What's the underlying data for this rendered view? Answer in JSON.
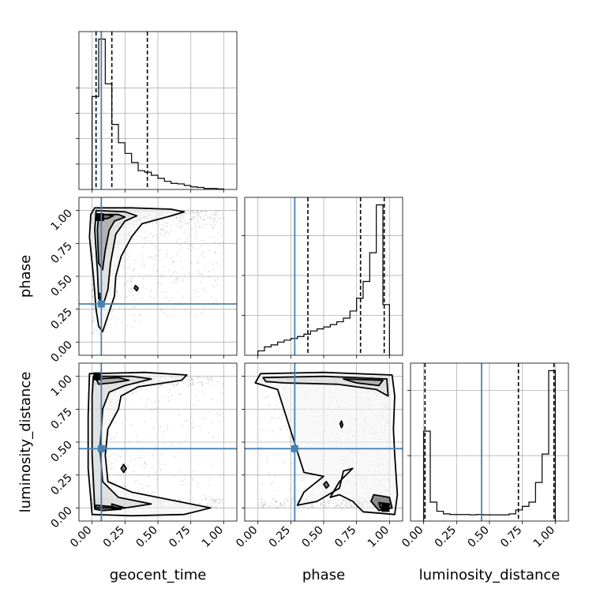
{
  "chart_data": [
    {
      "type": "histogram",
      "panel": "geocent_time",
      "xlim": [
        -0.1,
        1.1
      ],
      "bins": [
        0.0,
        0.05,
        0.1,
        0.15,
        0.2,
        0.25,
        0.3,
        0.35,
        0.4,
        0.45,
        0.5,
        0.55,
        0.6,
        0.65,
        0.7,
        0.75,
        0.8,
        0.85,
        0.9,
        0.95,
        1.0
      ],
      "counts": [
        183,
        296,
        208,
        128,
        92,
        71,
        53,
        37,
        34,
        28,
        22,
        16,
        12,
        11,
        8,
        5,
        4,
        2,
        2,
        1
      ],
      "yticks": [
        50,
        100,
        150,
        200
      ],
      "quantile_lines": [
        0.03,
        0.15,
        0.42
      ],
      "truth": 0.07
    },
    {
      "type": "histogram",
      "panel": "phase",
      "xlim": [
        -0.1,
        1.1
      ],
      "bins": [
        0.0,
        0.05,
        0.1,
        0.15,
        0.2,
        0.25,
        0.3,
        0.35,
        0.4,
        0.45,
        0.5,
        0.55,
        0.6,
        0.65,
        0.7,
        0.75,
        0.8,
        0.85,
        0.9,
        0.95,
        1.0
      ],
      "counts": [
        11,
        21,
        26,
        33,
        38,
        42,
        47,
        53,
        61,
        66,
        71,
        77,
        84,
        93,
        111,
        143,
        185,
        257,
        377,
        127
      ],
      "yticks": [
        100,
        200,
        300
      ],
      "quantile_lines": [
        0.38,
        0.78,
        0.96
      ],
      "truth": 0.28
    },
    {
      "type": "histogram",
      "panel": "luminosity_distance",
      "xlim": [
        -0.1,
        1.1
      ],
      "bins": [
        0.0,
        0.05,
        0.1,
        0.15,
        0.2,
        0.25,
        0.3,
        0.35,
        0.4,
        0.45,
        0.5,
        0.55,
        0.6,
        0.65,
        0.7,
        0.75,
        0.8,
        0.85,
        0.9,
        0.95,
        1.0
      ],
      "counts": [
        275,
        58,
        30,
        22,
        20,
        20,
        20,
        19,
        20,
        19,
        19,
        19,
        19,
        22,
        34,
        45,
        58,
        118,
        205,
        460
      ],
      "yticks": [
        200,
        400
      ],
      "quantile_lines": [
        0.01,
        0.72,
        0.99
      ],
      "truth": 0.44
    },
    {
      "type": "contour",
      "panel": "phase vs geocent_time",
      "xlim": [
        -0.1,
        1.1
      ],
      "ylim": [
        -0.1,
        1.1
      ],
      "xticks": [
        0.0,
        0.25,
        0.5,
        0.75,
        1.0
      ],
      "yticks": [
        0.0,
        0.25,
        0.5,
        0.75,
        1.0
      ],
      "yticklabels": [
        "0.00",
        "0.25",
        "0.50",
        "0.75",
        "1.00"
      ],
      "ylabel": "phase",
      "truth": [
        0.07,
        0.29
      ],
      "contours": [
        [
          [
            0.02,
            1.02
          ],
          [
            0.3,
            1.02
          ],
          [
            0.6,
            1.01
          ],
          [
            0.7,
            0.99
          ],
          [
            0.6,
            0.96
          ],
          [
            0.38,
            0.9
          ],
          [
            0.3,
            0.8
          ],
          [
            0.22,
            0.65
          ],
          [
            0.18,
            0.5
          ],
          [
            0.17,
            0.35
          ],
          [
            0.12,
            0.2
          ],
          [
            0.08,
            0.08
          ],
          [
            0.05,
            0.12
          ],
          [
            0.03,
            0.25
          ],
          [
            0.01,
            0.5
          ],
          [
            -0.02,
            0.8
          ],
          [
            -0.01,
            0.97
          ]
        ],
        [
          [
            0.03,
            1.0
          ],
          [
            0.25,
            0.99
          ],
          [
            0.34,
            0.96
          ],
          [
            0.25,
            0.92
          ],
          [
            0.18,
            0.82
          ],
          [
            0.14,
            0.6
          ],
          [
            0.12,
            0.4
          ],
          [
            0.09,
            0.3
          ],
          [
            0.05,
            0.33
          ],
          [
            0.04,
            0.55
          ],
          [
            0.02,
            0.85
          ]
        ],
        [
          [
            0.05,
            0.97
          ],
          [
            0.2,
            0.97
          ],
          [
            0.25,
            0.95
          ],
          [
            0.17,
            0.92
          ],
          [
            0.13,
            0.85
          ],
          [
            0.1,
            0.7
          ],
          [
            0.08,
            0.55
          ],
          [
            0.05,
            0.6
          ],
          [
            0.04,
            0.85
          ]
        ],
        [
          [
            0.04,
            0.97
          ],
          [
            0.1,
            0.97
          ],
          [
            0.16,
            0.96
          ],
          [
            0.12,
            0.94
          ],
          [
            0.05,
            0.93
          ]
        ],
        [
          [
            0.33,
            0.43
          ],
          [
            0.35,
            0.41
          ],
          [
            0.34,
            0.39
          ],
          [
            0.32,
            0.41
          ]
        ],
        [
          [
            0.055,
            0.37
          ],
          [
            0.07,
            0.36
          ],
          [
            0.06,
            0.33
          ],
          [
            0.05,
            0.35
          ]
        ]
      ],
      "density_peak": [
        0.06,
        0.95
      ]
    },
    {
      "type": "contour",
      "panel": "luminosity_distance vs geocent_time",
      "xlim": [
        -0.1,
        1.1
      ],
      "ylim": [
        -0.1,
        1.1
      ],
      "xticks": [
        0.0,
        0.25,
        0.5,
        0.75,
        1.0
      ],
      "xticklabels": [
        "0.00",
        "0.25",
        "0.50",
        "0.75",
        "1.00"
      ],
      "yticks": [
        0.0,
        0.25,
        0.5,
        0.75,
        1.0
      ],
      "yticklabels": [
        "0.00",
        "0.25",
        "0.50",
        "0.75",
        "1.00"
      ],
      "xlabel": "geocent_time",
      "ylabel": "luminosity_distance",
      "truth": [
        0.07,
        0.45
      ],
      "contours": [
        [
          [
            -0.02,
            1.02
          ],
          [
            0.4,
            1.03
          ],
          [
            0.72,
            1.01
          ],
          [
            0.68,
            0.97
          ],
          [
            0.35,
            0.92
          ],
          [
            0.22,
            0.85
          ],
          [
            0.2,
            0.75
          ],
          [
            0.12,
            0.6
          ],
          [
            0.1,
            0.4
          ],
          [
            0.12,
            0.2
          ],
          [
            0.3,
            0.12
          ],
          [
            0.6,
            0.06
          ],
          [
            0.9,
            0.0
          ],
          [
            0.7,
            -0.05
          ],
          [
            0.3,
            -0.06
          ],
          [
            0.0,
            -0.05
          ],
          [
            -0.03,
            0.3
          ],
          [
            -0.03,
            0.7
          ]
        ],
        [
          [
            0.01,
            1.0
          ],
          [
            0.3,
            1.0
          ],
          [
            0.45,
            0.98
          ],
          [
            0.25,
            0.93
          ],
          [
            0.13,
            0.88
          ],
          [
            0.08,
            0.75
          ],
          [
            0.06,
            0.45
          ],
          [
            0.08,
            0.2
          ],
          [
            0.2,
            0.08
          ],
          [
            0.45,
            0.03
          ],
          [
            0.25,
            0.0
          ],
          [
            0.02,
            0.0
          ],
          [
            0.0,
            0.4
          ],
          [
            0.0,
            0.85
          ]
        ],
        [
          [
            0.03,
            0.98
          ],
          [
            0.2,
            0.99
          ],
          [
            0.28,
            0.97
          ],
          [
            0.15,
            0.95
          ],
          [
            0.05,
            0.94
          ]
        ],
        [
          [
            0.03,
            0.02
          ],
          [
            0.15,
            0.01
          ],
          [
            0.22,
            -0.01
          ],
          [
            0.08,
            -0.02
          ],
          [
            0.02,
            -0.01
          ]
        ],
        [
          [
            0.15,
            0.03
          ],
          [
            0.25,
            0.0
          ],
          [
            0.15,
            -0.01
          ]
        ],
        [
          [
            0.24,
            0.33
          ],
          [
            0.26,
            0.3
          ],
          [
            0.24,
            0.27
          ],
          [
            0.22,
            0.3
          ]
        ]
      ],
      "density_peak": [
        0.04,
        1.0
      ]
    },
    {
      "type": "contour",
      "panel": "luminosity_distance vs phase",
      "xlim": [
        -0.1,
        1.1
      ],
      "ylim": [
        -0.1,
        1.1
      ],
      "xticks": [
        0.0,
        0.25,
        0.5,
        0.75,
        1.0
      ],
      "xticklabels": [
        "0.00",
        "0.25",
        "0.50",
        "0.75",
        "1.00"
      ],
      "yticks": [
        0.0,
        0.25,
        0.5,
        0.75,
        1.0
      ],
      "xlabel": "phase",
      "truth": [
        0.28,
        0.45
      ],
      "contours": [
        [
          [
            0.02,
            1.02
          ],
          [
            0.5,
            1.03
          ],
          [
            1.02,
            1.01
          ],
          [
            1.04,
            0.85
          ],
          [
            1.03,
            0.6
          ],
          [
            1.04,
            0.4
          ],
          [
            1.06,
            0.1
          ],
          [
            1.04,
            -0.05
          ],
          [
            0.8,
            -0.03
          ],
          [
            0.72,
            0.05
          ],
          [
            0.62,
            0.1
          ],
          [
            0.55,
            0.08
          ],
          [
            0.62,
            0.2
          ],
          [
            0.72,
            0.3
          ],
          [
            0.65,
            0.28
          ],
          [
            0.62,
            0.15
          ],
          [
            0.45,
            0.05
          ],
          [
            0.3,
            0.02
          ],
          [
            0.35,
            0.12
          ],
          [
            0.5,
            0.24
          ],
          [
            0.35,
            0.27
          ],
          [
            0.15,
            0.9
          ],
          [
            -0.02,
            0.95
          ]
        ],
        [
          [
            0.04,
            0.99
          ],
          [
            0.5,
            1.0
          ],
          [
            0.98,
            0.98
          ],
          [
            0.99,
            0.85
          ],
          [
            0.9,
            0.9
          ],
          [
            0.6,
            0.94
          ],
          [
            0.2,
            0.95
          ],
          [
            0.06,
            0.96
          ]
        ],
        [
          [
            0.65,
            0.98
          ],
          [
            0.95,
            0.97
          ],
          [
            0.92,
            0.93
          ],
          [
            0.75,
            0.95
          ]
        ],
        [
          [
            0.88,
            0.1
          ],
          [
            1.0,
            0.08
          ],
          [
            1.02,
            0.0
          ],
          [
            0.92,
            -0.02
          ],
          [
            0.86,
            0.05
          ]
        ],
        [
          [
            0.92,
            0.04
          ],
          [
            1.0,
            0.03
          ],
          [
            0.99,
            -0.01
          ],
          [
            0.93,
            0.0
          ]
        ],
        [
          [
            0.635,
            0.66
          ],
          [
            0.645,
            0.63
          ],
          [
            0.635,
            0.61
          ],
          [
            0.625,
            0.64
          ]
        ],
        [
          [
            0.52,
            0.2
          ],
          [
            0.54,
            0.17
          ],
          [
            0.52,
            0.15
          ],
          [
            0.5,
            0.18
          ]
        ]
      ],
      "density_peak": [
        0.97,
        0.0
      ]
    }
  ],
  "labels": {
    "x1": "geocent_time",
    "x2": "phase",
    "x3": "luminosity_distance",
    "y2": "phase",
    "y3": "luminosity_distance"
  },
  "ticks": {
    "x": [
      "0.00",
      "0.25",
      "0.50",
      "0.75",
      "1.00"
    ],
    "y": [
      "0.00",
      "0.25",
      "0.50",
      "0.75",
      "1.00"
    ]
  },
  "colors": {
    "truth": "#4682b4",
    "line": "#000000",
    "grid": "#b0b0b0",
    "scatter": "#9a9a9a"
  }
}
